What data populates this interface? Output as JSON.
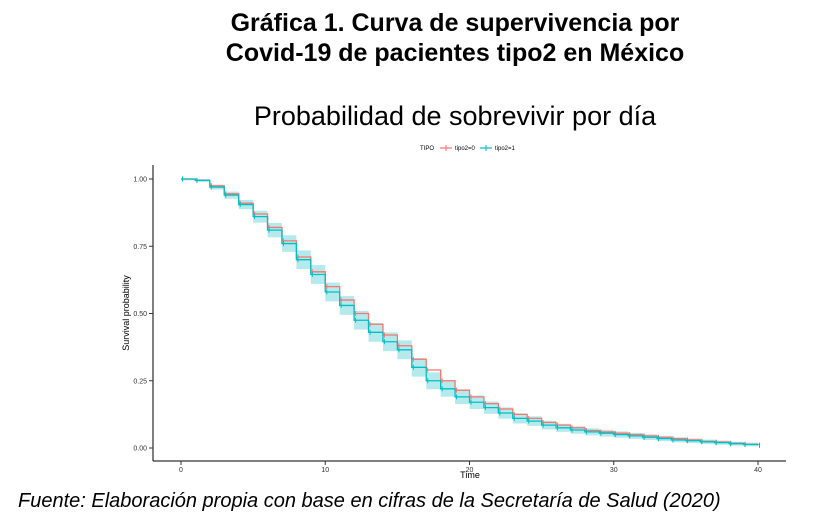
{
  "figure": {
    "title_line1": "Gráfica 1. Curva de supervivencia por",
    "title_line2": "Covid-19 de pacientes tipo2 en México",
    "source": "Fuente: Elaboración propia con base en cifras de la Secretaría de Salud (2020)"
  },
  "chart_data": {
    "type": "line",
    "title": "Probabilidad de sobrevivir por día",
    "xlabel": "Time",
    "ylabel": "Survival probability",
    "xlim": [
      0,
      40
    ],
    "ylim": [
      0,
      1
    ],
    "x_ticks": [
      "0",
      "10",
      "20",
      "30",
      "40"
    ],
    "y_ticks": [
      "0.00",
      "0.25",
      "0.50",
      "0.75",
      "1.00"
    ],
    "grid": false,
    "legend_title": "TIPO",
    "legend_position": "top",
    "colors": {
      "tipo2=0": "#f8766d",
      "tipo2=1": "#00bfc4",
      "band": "#a8e6ea"
    },
    "series": [
      {
        "name": "tipo2=0",
        "x": [
          0,
          1,
          2,
          3,
          4,
          5,
          6,
          7,
          8,
          9,
          10,
          11,
          12,
          13,
          14,
          15,
          16,
          17,
          18,
          19,
          20,
          21,
          22,
          23,
          24,
          25,
          26,
          27,
          28,
          29,
          30,
          31,
          32,
          33,
          34,
          35,
          36,
          37,
          38,
          39,
          40
        ],
        "values": [
          1.0,
          0.995,
          0.975,
          0.945,
          0.91,
          0.87,
          0.82,
          0.77,
          0.71,
          0.655,
          0.6,
          0.55,
          0.5,
          0.46,
          0.42,
          0.38,
          0.33,
          0.29,
          0.25,
          0.215,
          0.19,
          0.165,
          0.145,
          0.125,
          0.11,
          0.095,
          0.085,
          0.075,
          0.065,
          0.06,
          0.055,
          0.05,
          0.045,
          0.04,
          0.035,
          0.03,
          0.025,
          0.022,
          0.018,
          0.014,
          0.01
        ]
      },
      {
        "name": "tipo2=1",
        "x": [
          0,
          1,
          2,
          3,
          4,
          5,
          6,
          7,
          8,
          9,
          10,
          11,
          12,
          13,
          14,
          15,
          16,
          17,
          18,
          19,
          20,
          21,
          22,
          23,
          24,
          25,
          26,
          27,
          28,
          29,
          30,
          31,
          32,
          33,
          34,
          35,
          36,
          37,
          38,
          39,
          40
        ],
        "values": [
          1.0,
          0.995,
          0.97,
          0.94,
          0.905,
          0.86,
          0.81,
          0.76,
          0.7,
          0.645,
          0.58,
          0.53,
          0.475,
          0.43,
          0.395,
          0.365,
          0.3,
          0.25,
          0.22,
          0.19,
          0.17,
          0.15,
          0.13,
          0.11,
          0.1,
          0.085,
          0.075,
          0.067,
          0.06,
          0.055,
          0.05,
          0.045,
          0.04,
          0.035,
          0.03,
          0.027,
          0.023,
          0.02,
          0.016,
          0.013,
          0.01
        ]
      }
    ]
  }
}
